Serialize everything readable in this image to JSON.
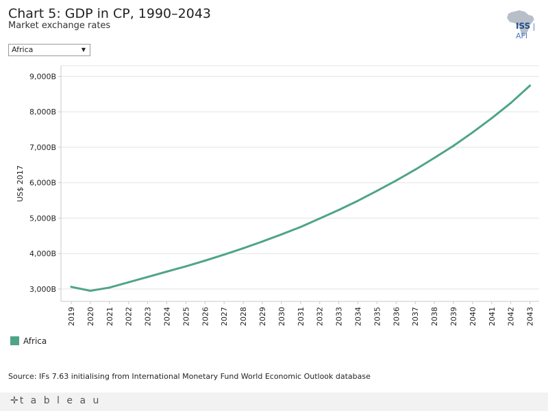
{
  "header": {
    "title": "Chart 5: GDP in CP, 1990–2043",
    "subtitle": "Market exchange rates"
  },
  "logo": {
    "text": "ISS",
    "suffix": "AFI"
  },
  "filter": {
    "selected": "Africa",
    "arrow": "▼"
  },
  "legend": {
    "label": "Africa"
  },
  "source": "Source: IFs 7.63 initialising from International Monetary Fund World Economic Outlook database",
  "footer": {
    "brand": "t a b l e a u",
    "plus": "✛"
  },
  "colors": {
    "series": "#4fa487",
    "grid": "#e3e3e3",
    "axis": "#c8c8c8"
  },
  "chart_data": {
    "type": "line",
    "title": "Chart 5: GDP in CP, 1990–2043",
    "subtitle": "Market exchange rates",
    "xlabel": "",
    "ylabel": "US$ 2017",
    "ylim": [
      2650,
      9300
    ],
    "yticks": [
      3000,
      4000,
      5000,
      6000,
      7000,
      8000,
      9000
    ],
    "ytick_labels": [
      "3,000B",
      "4,000B",
      "5,000B",
      "6,000B",
      "7,000B",
      "8,000B",
      "9,000B"
    ],
    "x": [
      "2019",
      "2020",
      "2021",
      "2022",
      "2023",
      "2024",
      "2025",
      "2026",
      "2027",
      "2028",
      "2029",
      "2030",
      "2031",
      "2032",
      "2033",
      "2034",
      "2035",
      "2036",
      "2037",
      "2038",
      "2039",
      "2040",
      "2041",
      "2042",
      "2043"
    ],
    "series": [
      {
        "name": "Africa",
        "values": [
          3060,
          2950,
          3040,
          3190,
          3340,
          3490,
          3640,
          3800,
          3970,
          4150,
          4340,
          4540,
          4750,
          4990,
          5230,
          5490,
          5770,
          6060,
          6370,
          6700,
          7040,
          7420,
          7820,
          8250,
          8740
        ]
      }
    ],
    "legend": "bottom-left",
    "grid": true
  }
}
